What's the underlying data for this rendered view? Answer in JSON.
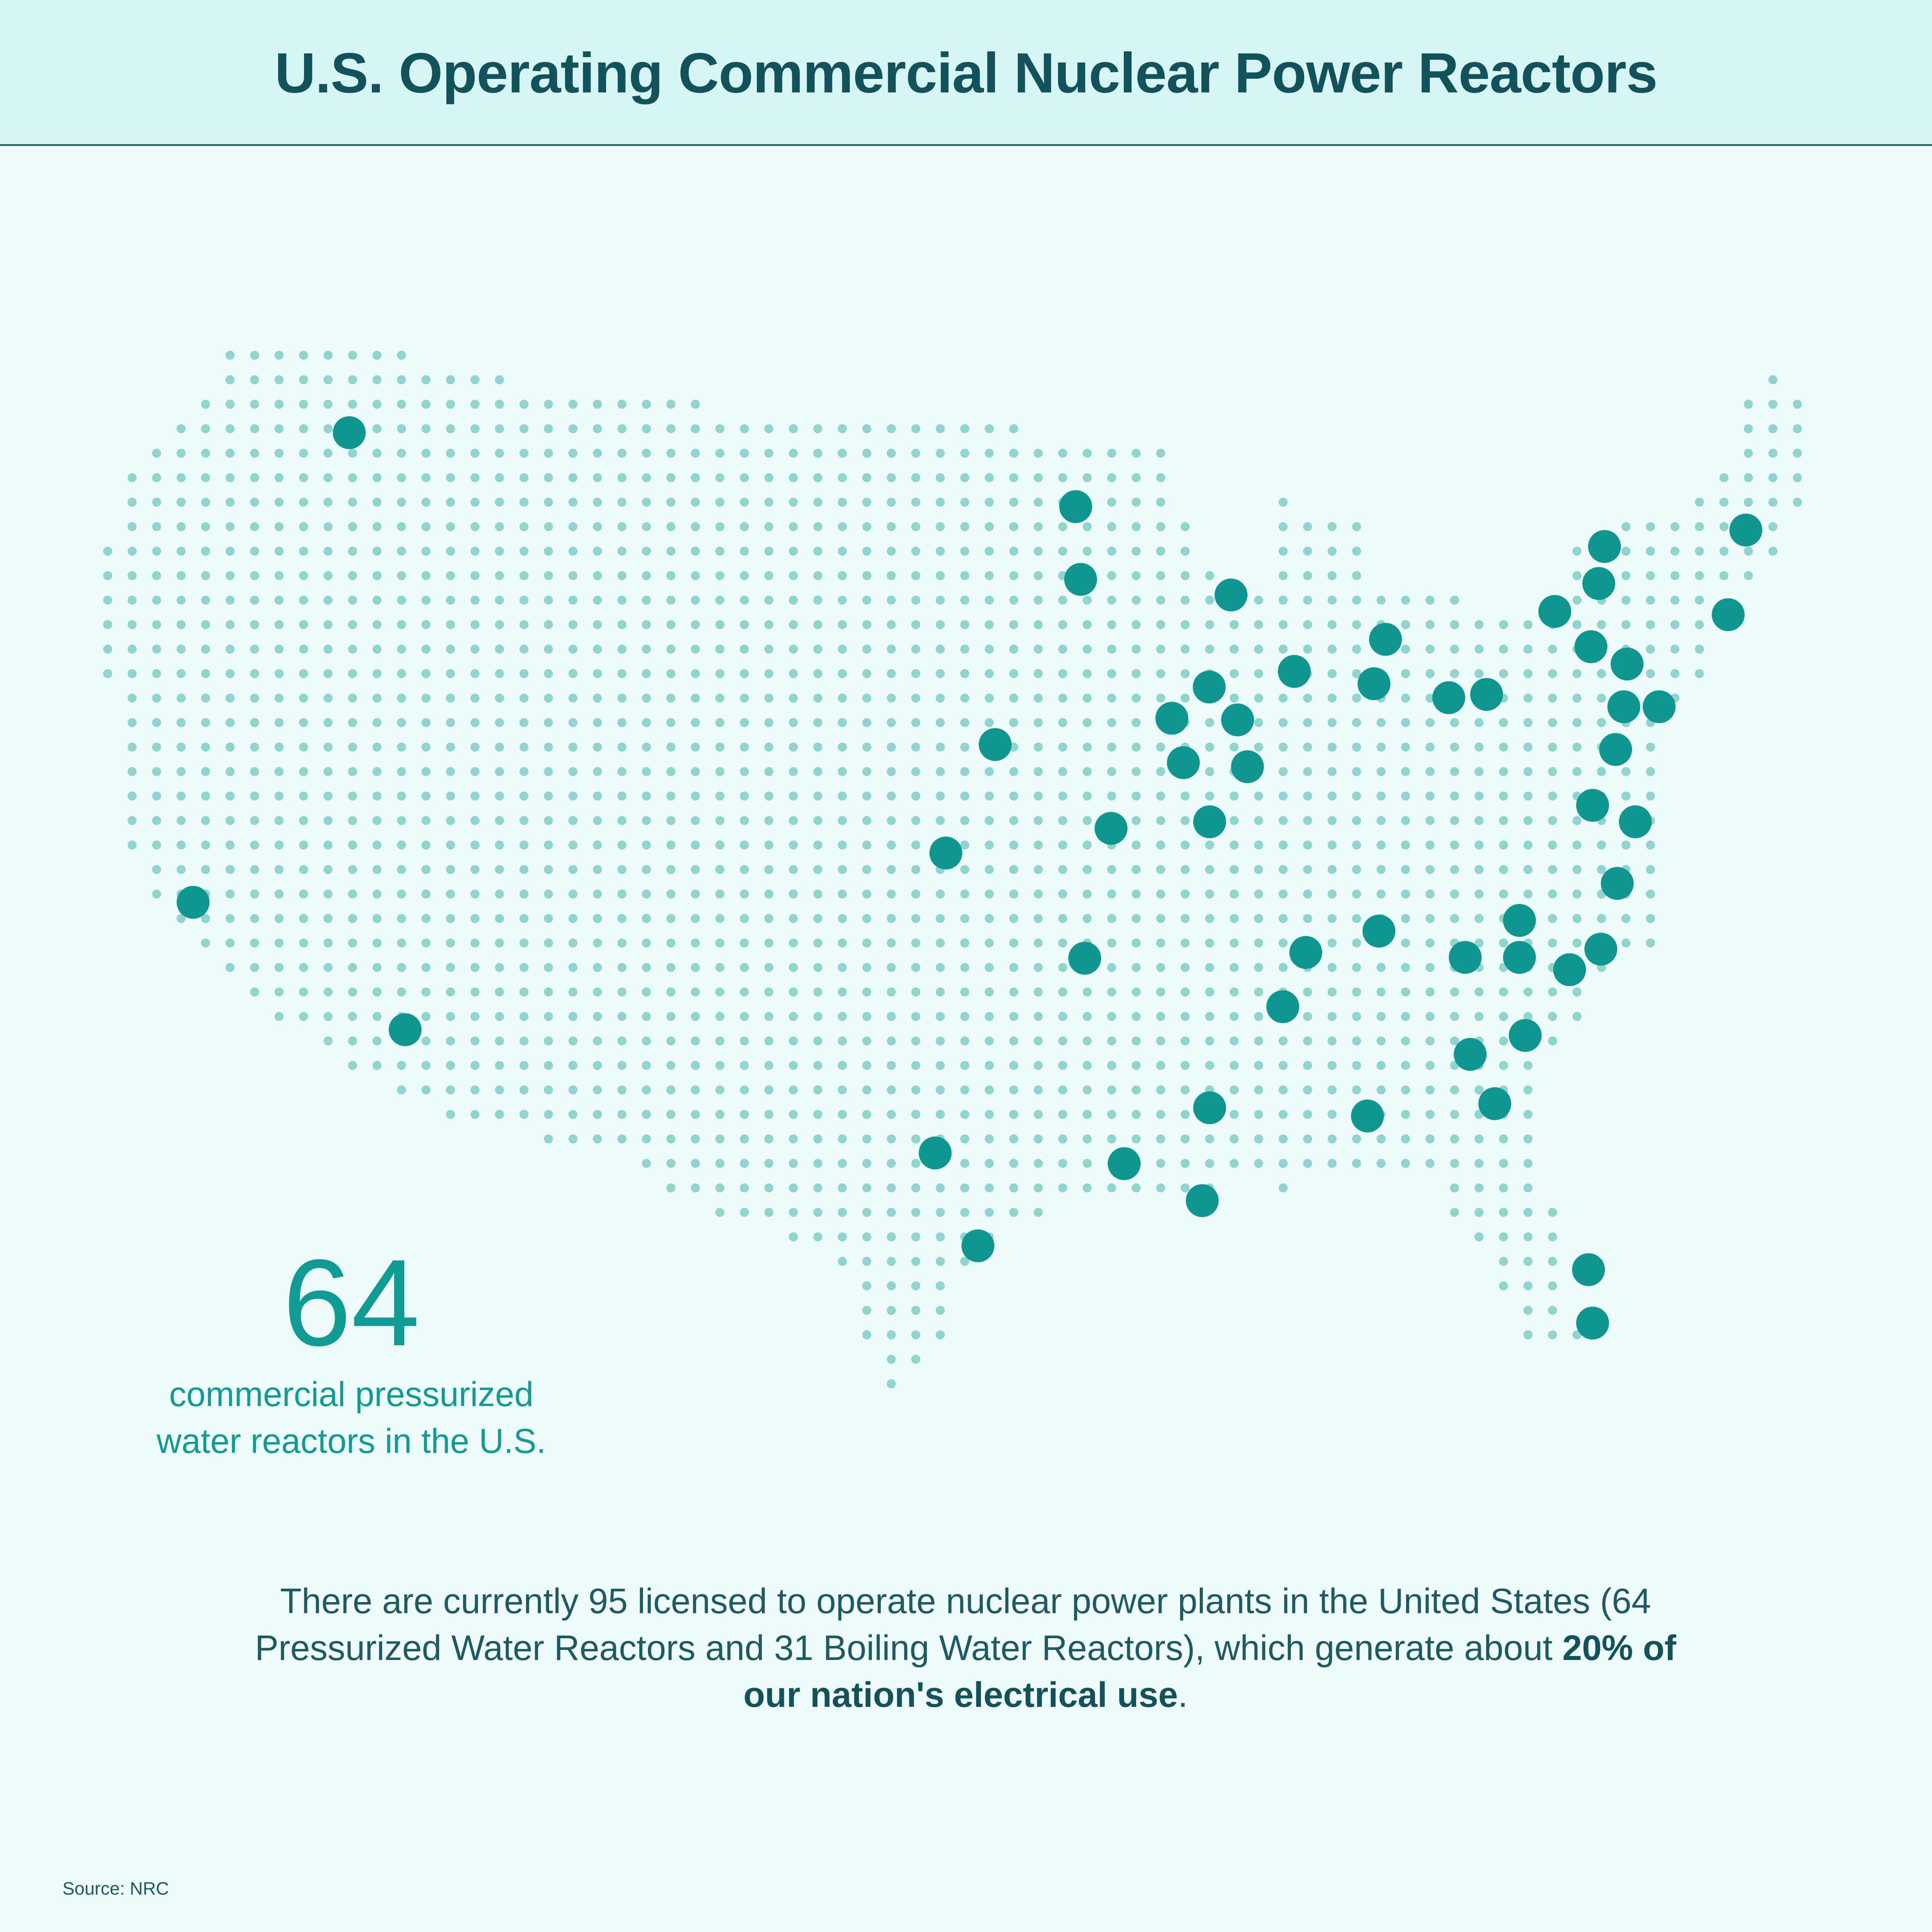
{
  "header": {
    "title": "U.S. Operating Commercial Nuclear Power Reactors"
  },
  "stat": {
    "number": "64",
    "label": "commercial pressurized water reactors in the U.S."
  },
  "footnote": {
    "text_before": "There are currently 95 licensed to operate nuclear power plants in the United States (64 Pressurized Water Reactors and 31 Boiling Water Reactors), which generate about ",
    "emphasis": "20% of our nation's electrical use",
    "text_after": "."
  },
  "source": {
    "label": "Source: NRC"
  },
  "colors": {
    "header_background": "#d8f5f5",
    "page_background": "#effafa",
    "title": "#12525b",
    "grid_dot": "#8fd4cf",
    "reactor_marker": "#0e9690",
    "stat_text": "#109c95"
  },
  "map_legend": {
    "grid_dot": "map-grid-dot",
    "reactor_marker": "reactor-location-marker"
  }
}
